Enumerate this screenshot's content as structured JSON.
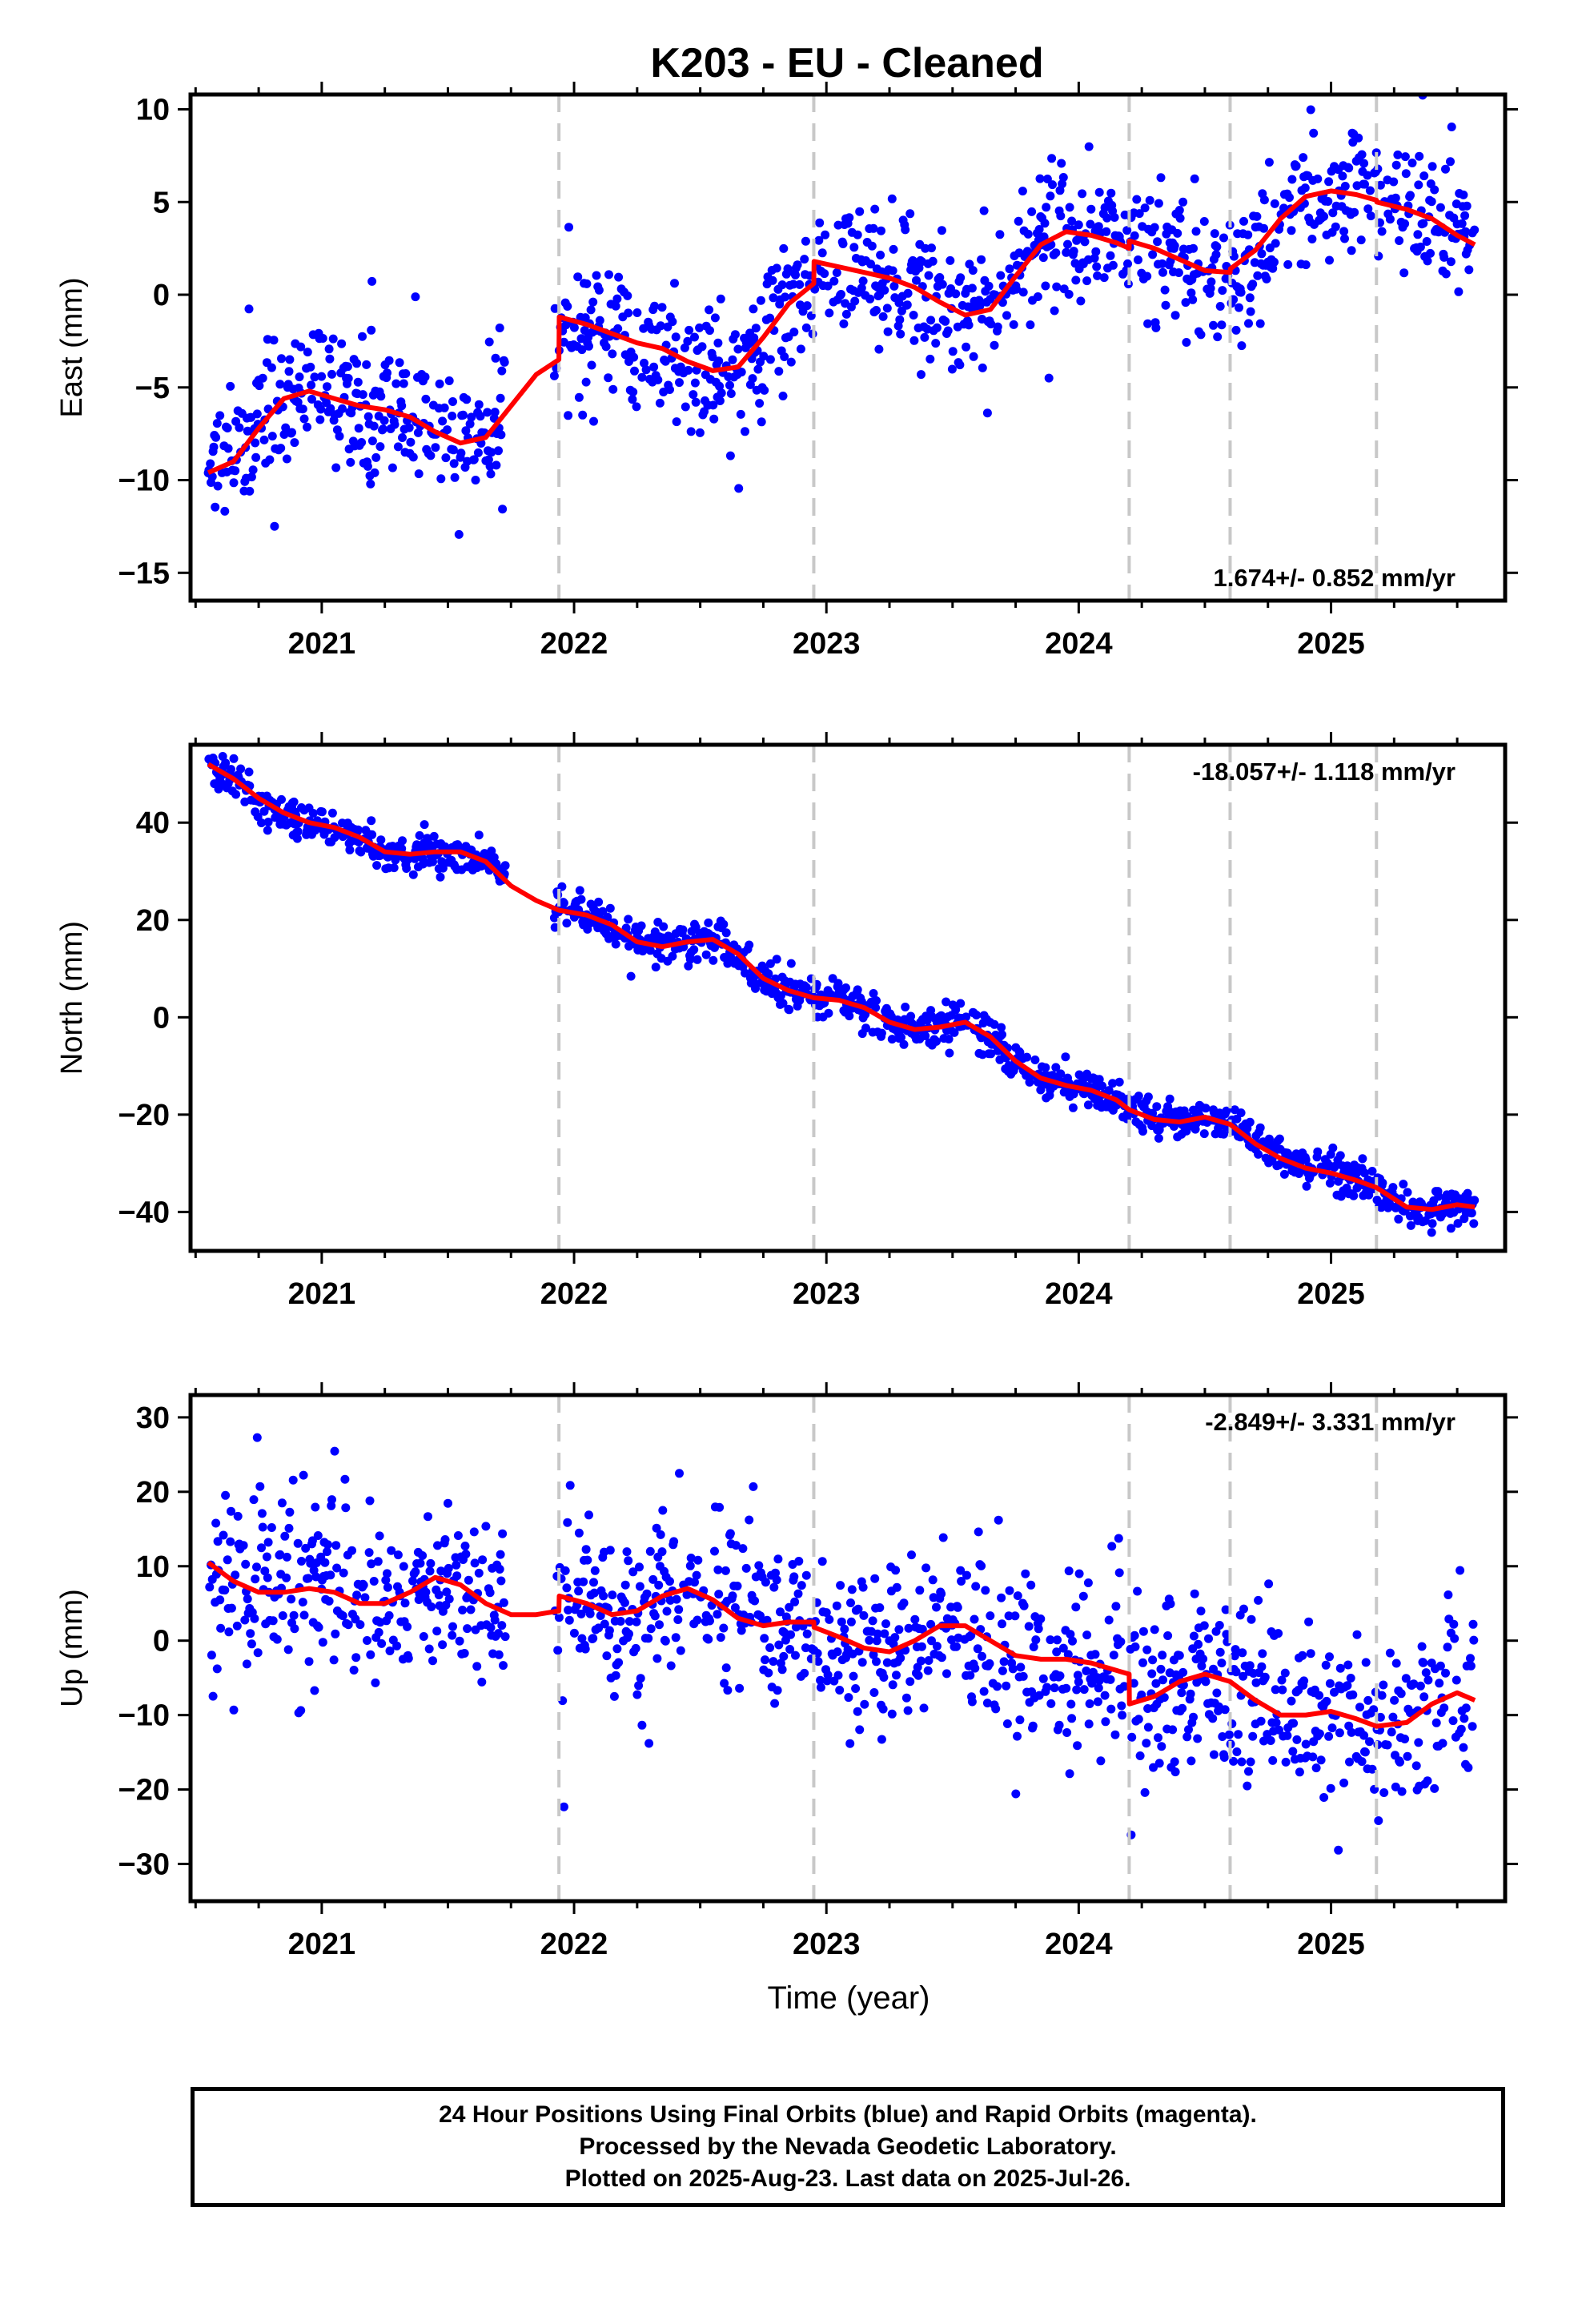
{
  "title": "K203  - EU - Cleaned",
  "footer": {
    "line1": "24 Hour Positions Using Final Orbits (blue) and Rapid Orbits (magenta).",
    "line2": "Processed by the Nevada Geodetic Laboratory.",
    "line3": "Plotted on 2025-Aug-23. Last data on 2025-Jul-26."
  },
  "colors": {
    "points": "#0000ff",
    "model": "#ff0000",
    "breaks": "#c8c8c8",
    "axes": "#000000"
  },
  "chart_data": [
    {
      "type": "scatter",
      "name": "east",
      "ylabel": "East (mm)",
      "xlim": [
        2020.48,
        2025.69
      ],
      "ylim": [
        -16.5,
        10.8
      ],
      "yticks": [
        -15,
        -10,
        -5,
        0,
        5,
        10
      ],
      "xticks": [
        2021,
        2022,
        2023,
        2024,
        2025
      ],
      "grid": false,
      "rate_label": "1.674+/- 0.852 mm/yr",
      "rate_position": "bottom-right",
      "breaks": [
        2021.94,
        2022.95,
        2024.2,
        2024.6,
        2025.18
      ],
      "data_span": [
        2020.55,
        2025.57
      ],
      "gaps": [
        [
          2021.73,
          2021.92
        ]
      ],
      "model": [
        [
          2020.55,
          -9.6
        ],
        [
          2020.65,
          -9.0
        ],
        [
          2020.75,
          -7.2
        ],
        [
          2020.85,
          -5.6
        ],
        [
          2020.95,
          -5.2
        ],
        [
          2021.05,
          -5.6
        ],
        [
          2021.15,
          -6.0
        ],
        [
          2021.25,
          -6.2
        ],
        [
          2021.35,
          -6.6
        ],
        [
          2021.45,
          -7.4
        ],
        [
          2021.55,
          -8.0
        ],
        [
          2021.65,
          -7.7
        ],
        [
          2021.75,
          -6.0
        ],
        [
          2021.85,
          -4.3
        ],
        [
          2021.94,
          -3.5
        ],
        [
          2021.941,
          -1.2
        ],
        [
          2022.05,
          -1.6
        ],
        [
          2022.15,
          -2.1
        ],
        [
          2022.25,
          -2.6
        ],
        [
          2022.35,
          -2.9
        ],
        [
          2022.45,
          -3.6
        ],
        [
          2022.55,
          -4.1
        ],
        [
          2022.65,
          -3.9
        ],
        [
          2022.75,
          -2.3
        ],
        [
          2022.85,
          -0.5
        ],
        [
          2022.95,
          0.6
        ],
        [
          2022.951,
          1.8
        ],
        [
          2023.05,
          1.5
        ],
        [
          2023.15,
          1.2
        ],
        [
          2023.25,
          0.9
        ],
        [
          2023.35,
          0.4
        ],
        [
          2023.45,
          -0.4
        ],
        [
          2023.55,
          -1.1
        ],
        [
          2023.65,
          -0.8
        ],
        [
          2023.75,
          1.0
        ],
        [
          2023.85,
          2.7
        ],
        [
          2023.95,
          3.4
        ],
        [
          2024.05,
          3.2
        ],
        [
          2024.15,
          2.8
        ],
        [
          2024.2,
          2.5
        ],
        [
          2024.201,
          2.9
        ],
        [
          2024.3,
          2.5
        ],
        [
          2024.4,
          1.9
        ],
        [
          2024.5,
          1.3
        ],
        [
          2024.6,
          1.2
        ],
        [
          2024.601,
          1.4
        ],
        [
          2024.7,
          2.4
        ],
        [
          2024.8,
          4.1
        ],
        [
          2024.9,
          5.3
        ],
        [
          2025.0,
          5.6
        ],
        [
          2025.1,
          5.4
        ],
        [
          2025.18,
          5.1
        ],
        [
          2025.181,
          5.0
        ],
        [
          2025.3,
          4.6
        ],
        [
          2025.4,
          4.1
        ],
        [
          2025.5,
          3.2
        ],
        [
          2025.57,
          2.7
        ]
      ],
      "scatter_sd": 1.8
    },
    {
      "type": "scatter",
      "name": "north",
      "ylabel": "North (mm)",
      "xlim": [
        2020.48,
        2025.69
      ],
      "ylim": [
        -48,
        56
      ],
      "yticks": [
        -40,
        -20,
        0,
        20,
        40
      ],
      "xticks": [
        2021,
        2022,
        2023,
        2024,
        2025
      ],
      "grid": false,
      "rate_label": "-18.057+/- 1.118 mm/yr",
      "rate_position": "top-right",
      "breaks": [
        2021.94,
        2022.95,
        2024.2,
        2024.6,
        2025.18
      ],
      "data_span": [
        2020.55,
        2025.57
      ],
      "gaps": [
        [
          2021.73,
          2021.92
        ]
      ],
      "model": [
        [
          2020.55,
          52
        ],
        [
          2020.65,
          49
        ],
        [
          2020.75,
          45
        ],
        [
          2020.85,
          42
        ],
        [
          2020.95,
          40
        ],
        [
          2021.05,
          39
        ],
        [
          2021.15,
          37
        ],
        [
          2021.25,
          34
        ],
        [
          2021.35,
          33.5
        ],
        [
          2021.45,
          34
        ],
        [
          2021.55,
          34
        ],
        [
          2021.65,
          32
        ],
        [
          2021.75,
          27
        ],
        [
          2021.85,
          24
        ],
        [
          2021.94,
          22
        ],
        [
          2022.05,
          21
        ],
        [
          2022.15,
          19
        ],
        [
          2022.25,
          15.5
        ],
        [
          2022.35,
          14.5
        ],
        [
          2022.45,
          15.5
        ],
        [
          2022.55,
          16
        ],
        [
          2022.65,
          13
        ],
        [
          2022.75,
          8
        ],
        [
          2022.85,
          5.5
        ],
        [
          2022.95,
          4
        ],
        [
          2023.05,
          3.5
        ],
        [
          2023.15,
          2
        ],
        [
          2023.25,
          -1
        ],
        [
          2023.35,
          -2.5
        ],
        [
          2023.45,
          -2
        ],
        [
          2023.55,
          -1
        ],
        [
          2023.65,
          -4
        ],
        [
          2023.75,
          -9
        ],
        [
          2023.85,
          -12.5
        ],
        [
          2023.95,
          -14
        ],
        [
          2024.05,
          -15
        ],
        [
          2024.15,
          -17
        ],
        [
          2024.2,
          -19
        ],
        [
          2024.3,
          -21
        ],
        [
          2024.4,
          -21.5
        ],
        [
          2024.5,
          -20.5
        ],
        [
          2024.6,
          -22
        ],
        [
          2024.7,
          -26
        ],
        [
          2024.8,
          -29
        ],
        [
          2024.9,
          -31
        ],
        [
          2025.0,
          -32
        ],
        [
          2025.1,
          -33.5
        ],
        [
          2025.18,
          -35
        ],
        [
          2025.3,
          -39
        ],
        [
          2025.4,
          -39.5
        ],
        [
          2025.5,
          -38.5
        ],
        [
          2025.57,
          -39
        ]
      ],
      "scatter_sd": 2.0
    },
    {
      "type": "scatter",
      "name": "up",
      "ylabel": "Up (mm)",
      "xlabel": "Time (year)",
      "xlim": [
        2020.48,
        2025.69
      ],
      "ylim": [
        -35,
        33
      ],
      "yticks": [
        -30,
        -20,
        -10,
        0,
        10,
        20,
        30
      ],
      "xticks": [
        2021,
        2022,
        2023,
        2024,
        2025
      ],
      "grid": false,
      "rate_label": "-2.849+/- 3.331 mm/yr",
      "rate_position": "top-right",
      "breaks": [
        2021.94,
        2022.95,
        2024.2,
        2024.6,
        2025.18
      ],
      "data_span": [
        2020.55,
        2025.57
      ],
      "gaps": [
        [
          2021.73,
          2021.92
        ]
      ],
      "model": [
        [
          2020.55,
          10.5
        ],
        [
          2020.65,
          8
        ],
        [
          2020.75,
          6.5
        ],
        [
          2020.85,
          6.5
        ],
        [
          2020.95,
          7
        ],
        [
          2021.05,
          6.5
        ],
        [
          2021.15,
          5
        ],
        [
          2021.25,
          5
        ],
        [
          2021.35,
          6.5
        ],
        [
          2021.45,
          8.5
        ],
        [
          2021.55,
          7.5
        ],
        [
          2021.65,
          5
        ],
        [
          2021.75,
          3.5
        ],
        [
          2021.85,
          3.5
        ],
        [
          2021.94,
          4
        ],
        [
          2021.941,
          6
        ],
        [
          2022.05,
          5
        ],
        [
          2022.15,
          3.5
        ],
        [
          2022.25,
          4
        ],
        [
          2022.35,
          6
        ],
        [
          2022.45,
          7
        ],
        [
          2022.55,
          5.5
        ],
        [
          2022.65,
          3
        ],
        [
          2022.75,
          2
        ],
        [
          2022.85,
          2.5
        ],
        [
          2022.95,
          2.5
        ],
        [
          2022.951,
          1.8
        ],
        [
          2023.05,
          0.5
        ],
        [
          2023.15,
          -1
        ],
        [
          2023.25,
          -1.5
        ],
        [
          2023.35,
          0
        ],
        [
          2023.45,
          2
        ],
        [
          2023.55,
          2
        ],
        [
          2023.65,
          0
        ],
        [
          2023.75,
          -2
        ],
        [
          2023.85,
          -2.5
        ],
        [
          2023.95,
          -2.5
        ],
        [
          2024.05,
          -3
        ],
        [
          2024.15,
          -4
        ],
        [
          2024.2,
          -4.5
        ],
        [
          2024.201,
          -8.5
        ],
        [
          2024.3,
          -7.5
        ],
        [
          2024.4,
          -5.5
        ],
        [
          2024.5,
          -4.5
        ],
        [
          2024.6,
          -5.5
        ],
        [
          2024.7,
          -8
        ],
        [
          2024.8,
          -10
        ],
        [
          2024.9,
          -10
        ],
        [
          2025.0,
          -9.5
        ],
        [
          2025.1,
          -10.5
        ],
        [
          2025.18,
          -11.5
        ],
        [
          2025.3,
          -11
        ],
        [
          2025.4,
          -8.5
        ],
        [
          2025.5,
          -7
        ],
        [
          2025.57,
          -8
        ]
      ],
      "scatter_sd": 6.0
    }
  ]
}
